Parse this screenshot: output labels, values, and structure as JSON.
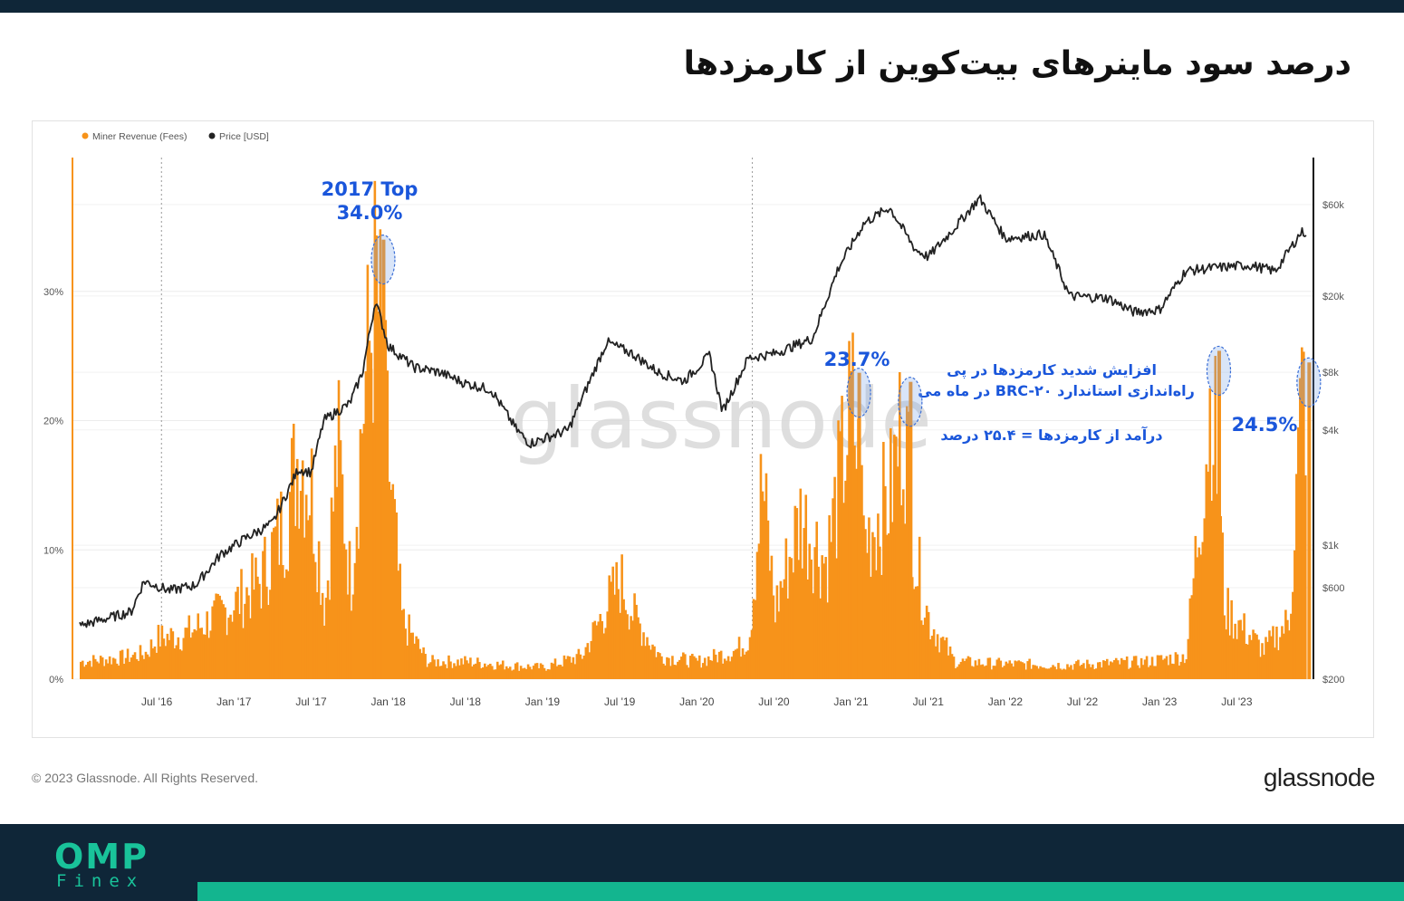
{
  "page": {
    "title": "درصد سود ماینرهای بیت‌کوین از کارمزدها",
    "copyright": "© 2023 Glassnode. All Rights Reserved.",
    "brand": "glassnode",
    "watermark": "glassnode",
    "footer_logo": {
      "main": "OMP",
      "sub": "Finex"
    },
    "colors": {
      "fees": "#f7931a",
      "price": "#222222",
      "annotation": "#1a56db",
      "header": "#0f2638",
      "accent": "#13b58f"
    }
  },
  "annotations": {
    "top2017_line1": "2017 Top",
    "top2017_line2": "34.0%",
    "peak2021": "23.7%",
    "brc20_line1": "افزایش شدید کارمزدها در پی",
    "brc20_line2": "راه‌اندازی استاندارد BRC-۲۰ در ماه می",
    "brc20_line3": "درآمد از کارمزدها = ۲۵.۴ درصد",
    "peak2023": "24.5%"
  },
  "chart_data": {
    "type": "area",
    "legend": [
      {
        "name": "Miner Revenue (Fees)",
        "color": "#f7931a"
      },
      {
        "name": "Price [USD]",
        "color": "#222222"
      }
    ],
    "legend_position": "top-left",
    "x_ticks": [
      "Jul '16",
      "Jan '17",
      "Jul '17",
      "Jan '18",
      "Jul '18",
      "Jan '19",
      "Jul '19",
      "Jan '20",
      "Jul '20",
      "Jan '21",
      "Jul '21",
      "Jan '22",
      "Jul '22",
      "Jan '23",
      "Jul '23"
    ],
    "y_left": {
      "ticks": [
        "0%",
        "10%",
        "20%",
        "30%"
      ],
      "range": [
        0,
        40
      ]
    },
    "y_right": {
      "scale": "log",
      "ticks": [
        "$200",
        "$600",
        "$1k",
        "$4k",
        "$8k",
        "$20k",
        "$60k"
      ],
      "range": [
        200,
        100000
      ]
    },
    "grid": true,
    "series": [
      {
        "name": "Miner Revenue (Fees)",
        "unit": "%",
        "points": [
          [
            "2016-01",
            1.5
          ],
          [
            "2016-04",
            1.8
          ],
          [
            "2016-06",
            2.2
          ],
          [
            "2016-07",
            3.5
          ],
          [
            "2016-09",
            3.8
          ],
          [
            "2016-11",
            5.0
          ],
          [
            "2017-01",
            6.5
          ],
          [
            "2017-03",
            8.5
          ],
          [
            "2017-05",
            14.0
          ],
          [
            "2017-06",
            20.0
          ],
          [
            "2017-07",
            16.0
          ],
          [
            "2017-08",
            6.0
          ],
          [
            "2017-09",
            20.0
          ],
          [
            "2017-10",
            8.0
          ],
          [
            "2017-11",
            24.0
          ],
          [
            "2017-12",
            34.0
          ],
          [
            "2018-01",
            18.0
          ],
          [
            "2018-02",
            5.0
          ],
          [
            "2018-04",
            1.5
          ],
          [
            "2018-07",
            1.5
          ],
          [
            "2018-10",
            1.2
          ],
          [
            "2019-01",
            1.0
          ],
          [
            "2019-04",
            2.0
          ],
          [
            "2019-06",
            6.5
          ],
          [
            "2019-07",
            8.5
          ],
          [
            "2019-08",
            5.5
          ],
          [
            "2019-10",
            2.0
          ],
          [
            "2020-01",
            1.5
          ],
          [
            "2020-04",
            2.5
          ],
          [
            "2020-05",
            3.5
          ],
          [
            "2020-06",
            17.0
          ],
          [
            "2020-07",
            6.0
          ],
          [
            "2020-09",
            14.0
          ],
          [
            "2020-11",
            10.0
          ],
          [
            "2021-01",
            23.7
          ],
          [
            "2021-02",
            12.0
          ],
          [
            "2021-04",
            16.0
          ],
          [
            "2021-05",
            23.0
          ],
          [
            "2021-06",
            10.0
          ],
          [
            "2021-07",
            5.0
          ],
          [
            "2021-09",
            1.5
          ],
          [
            "2022-01",
            1.3
          ],
          [
            "2022-06",
            1.2
          ],
          [
            "2022-12",
            1.5
          ],
          [
            "2023-03",
            2.0
          ],
          [
            "2023-05",
            25.4
          ],
          [
            "2023-06",
            6.0
          ],
          [
            "2023-09",
            2.5
          ],
          [
            "2023-11",
            5.0
          ],
          [
            "2023-12",
            24.5
          ]
        ]
      },
      {
        "name": "Price [USD]",
        "unit": "USD",
        "points": [
          [
            "2016-01",
            380
          ],
          [
            "2016-05",
            450
          ],
          [
            "2016-06",
            650
          ],
          [
            "2016-08",
            580
          ],
          [
            "2016-10",
            620
          ],
          [
            "2016-12",
            900
          ],
          [
            "2017-02",
            1100
          ],
          [
            "2017-04",
            1300
          ],
          [
            "2017-06",
            2500
          ],
          [
            "2017-07",
            2400
          ],
          [
            "2017-08",
            4500
          ],
          [
            "2017-10",
            5500
          ],
          [
            "2017-11",
            8000
          ],
          [
            "2017-12",
            19000
          ],
          [
            "2018-01",
            11000
          ],
          [
            "2018-03",
            8500
          ],
          [
            "2018-05",
            8000
          ],
          [
            "2018-07",
            7000
          ],
          [
            "2018-09",
            6500
          ],
          [
            "2018-11",
            4000
          ],
          [
            "2018-12",
            3400
          ],
          [
            "2019-03",
            4000
          ],
          [
            "2019-06",
            11500
          ],
          [
            "2019-08",
            10000
          ],
          [
            "2019-10",
            8000
          ],
          [
            "2019-12",
            7200
          ],
          [
            "2020-02",
            9800
          ],
          [
            "2020-03",
            5000
          ],
          [
            "2020-05",
            9500
          ],
          [
            "2020-07",
            10000
          ],
          [
            "2020-10",
            12000
          ],
          [
            "2020-12",
            28000
          ],
          [
            "2021-02",
            48000
          ],
          [
            "2021-04",
            58000
          ],
          [
            "2021-06",
            35000
          ],
          [
            "2021-07",
            32000
          ],
          [
            "2021-09",
            45000
          ],
          [
            "2021-11",
            65000
          ],
          [
            "2022-01",
            40000
          ],
          [
            "2022-04",
            42000
          ],
          [
            "2022-06",
            20000
          ],
          [
            "2022-09",
            19500
          ],
          [
            "2022-11",
            16500
          ],
          [
            "2023-01",
            17000
          ],
          [
            "2023-03",
            27000
          ],
          [
            "2023-05",
            28000
          ],
          [
            "2023-08",
            29000
          ],
          [
            "2023-10",
            27000
          ],
          [
            "2023-12",
            43000
          ]
        ]
      }
    ]
  }
}
